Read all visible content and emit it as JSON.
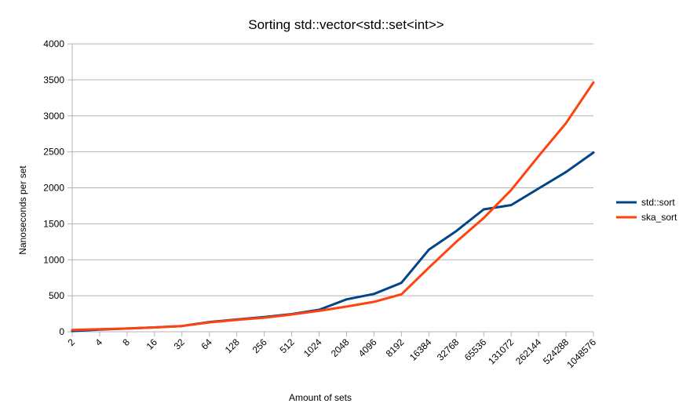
{
  "chart_data": {
    "type": "line",
    "title": "Sorting std::vector<std::set<int>>",
    "xlabel": "Amount of sets",
    "ylabel": "Nanoseconds per set",
    "ylim": [
      0,
      4000
    ],
    "yticks": [
      0,
      500,
      1000,
      1500,
      2000,
      2500,
      3000,
      3500,
      4000
    ],
    "grid": true,
    "legend": "right",
    "categories": [
      "2",
      "4",
      "8",
      "16",
      "32",
      "64",
      "128",
      "256",
      "512",
      "1024",
      "2048",
      "4096",
      "8192",
      "16384",
      "32768",
      "65536",
      "131072",
      "262144",
      "524288",
      "1048576"
    ],
    "series": [
      {
        "name": "std::sort",
        "color": "#004586",
        "values": [
          10,
          30,
          45,
          60,
          80,
          135,
          170,
          205,
          245,
          305,
          450,
          525,
          680,
          1140,
          1400,
          1700,
          1760,
          1990,
          2220,
          2490
        ]
      },
      {
        "name": "ska_sort",
        "color": "#ff420e",
        "values": [
          25,
          35,
          45,
          60,
          80,
          130,
          165,
          195,
          240,
          290,
          350,
          415,
          520,
          890,
          1250,
          1580,
          1970,
          2440,
          2900,
          3465
        ]
      }
    ]
  }
}
